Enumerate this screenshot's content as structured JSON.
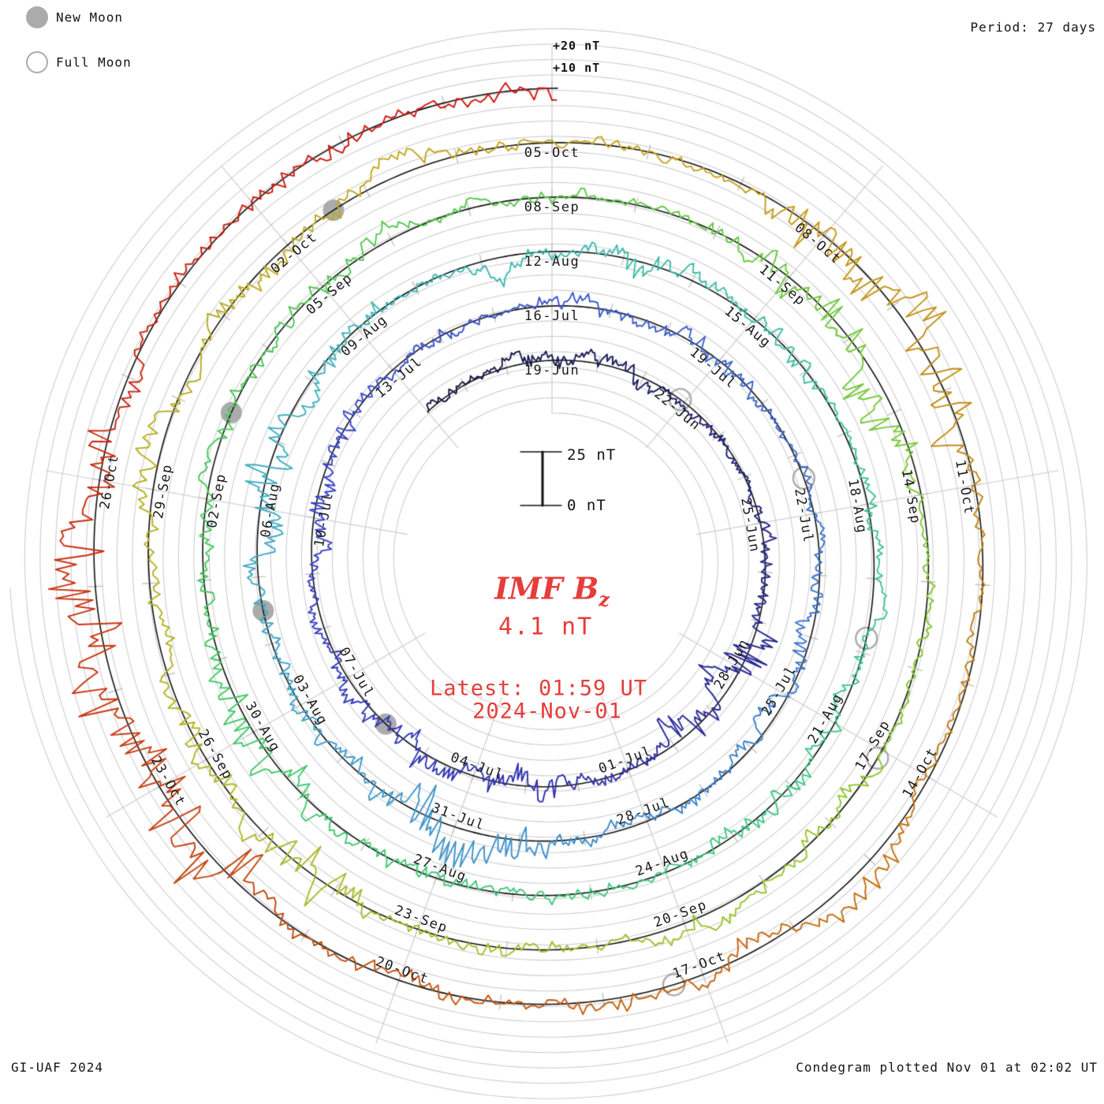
{
  "header": {
    "period_label": "Period: 27 days"
  },
  "legend": {
    "new_moon": "New Moon",
    "full_moon": "Full Moon"
  },
  "footer": {
    "left": "GI-UAF 2024",
    "right": "Condegram plotted Nov 01 at 02:02 UT"
  },
  "center": {
    "title_main": "IMF B",
    "title_sub": "z",
    "value": "4.1 nT",
    "latest_line1": "Latest: 01:59 UT",
    "latest_line2": "2024-Nov-01"
  },
  "grid_labels": {
    "plus20": "+20 nT",
    "plus10": "+10 nT"
  },
  "scale_bar": {
    "top_label": "25 nT",
    "bottom_label": "0 nT"
  },
  "chart_data": {
    "type": "line",
    "subtype": "condegram (polar time-spiral of IMF Bz, one revolution = 27 days, 5 revolutions ending 2024-Nov-01)",
    "title": "IMF Bz",
    "units": "nT",
    "period_days": 27,
    "revolutions": 5,
    "latest": {
      "value_nT": 4.1,
      "time": "01:59 UT",
      "date": "2024-Nov-01"
    },
    "scale": {
      "bar_span_nT": [
        0,
        25
      ],
      "grid_step_nT": 10,
      "outer_grid_labels": [
        "+10 nT",
        "+20 nT"
      ]
    },
    "legend_position": "top-left",
    "grid_on": true,
    "date_labels": [
      {
        "day": 3,
        "label": "19-Jun"
      },
      {
        "day": 6,
        "label": "22-Jun"
      },
      {
        "day": 9,
        "label": "25-Jun"
      },
      {
        "day": 12,
        "label": "28-Jun"
      },
      {
        "day": 15,
        "label": "01-Jul"
      },
      {
        "day": 18,
        "label": "04-Jul"
      },
      {
        "day": 21,
        "label": "07-Jul"
      },
      {
        "day": 24,
        "label": "10-Jul"
      },
      {
        "day": 27,
        "label": "13-Jul"
      },
      {
        "day": 30,
        "label": "16-Jul"
      },
      {
        "day": 33,
        "label": "19-Jul"
      },
      {
        "day": 36,
        "label": "22-Jul"
      },
      {
        "day": 39,
        "label": "25-Jul"
      },
      {
        "day": 42,
        "label": "28-Jul"
      },
      {
        "day": 45,
        "label": "31-Jul"
      },
      {
        "day": 48,
        "label": "03-Aug"
      },
      {
        "day": 51,
        "label": "06-Aug"
      },
      {
        "day": 54,
        "label": "09-Aug"
      },
      {
        "day": 57,
        "label": "12-Aug"
      },
      {
        "day": 60,
        "label": "15-Aug"
      },
      {
        "day": 63,
        "label": "18-Aug"
      },
      {
        "day": 66,
        "label": "21-Aug"
      },
      {
        "day": 69,
        "label": "24-Aug"
      },
      {
        "day": 72,
        "label": "27-Aug"
      },
      {
        "day": 75,
        "label": "30-Aug"
      },
      {
        "day": 78,
        "label": "02-Sep"
      },
      {
        "day": 81,
        "label": "05-Sep"
      },
      {
        "day": 84,
        "label": "08-Sep"
      },
      {
        "day": 87,
        "label": "11-Sep"
      },
      {
        "day": 90,
        "label": "14-Sep"
      },
      {
        "day": 93,
        "label": "17-Sep"
      },
      {
        "day": 96,
        "label": "20-Sep"
      },
      {
        "day": 99,
        "label": "23-Sep"
      },
      {
        "day": 102,
        "label": "26-Sep"
      },
      {
        "day": 105,
        "label": "29-Sep"
      },
      {
        "day": 108,
        "label": "02-Oct"
      },
      {
        "day": 111,
        "label": "05-Oct"
      },
      {
        "day": 114,
        "label": "08-Oct"
      },
      {
        "day": 117,
        "label": "11-Oct"
      },
      {
        "day": 120,
        "label": "14-Oct"
      },
      {
        "day": 123,
        "label": "17-Oct"
      },
      {
        "day": 126,
        "label": "20-Oct"
      },
      {
        "day": 129,
        "label": "23-Oct"
      },
      {
        "day": 132,
        "label": "26-Oct"
      }
    ],
    "moon_markers": {
      "new_moon_days": [
        19.9,
        49.5,
        79.1,
        108.6
      ],
      "full_moon_days": [
        5.9,
        35.4,
        64.8,
        93.1,
        123.3
      ]
    },
    "colors": {
      "accent_red_text": "#e63d3b",
      "grid_gray": "#cdcdcd",
      "moon_gray": "#ababab",
      "baseline_black": "#111111",
      "trace_gradient_stops": [
        {
          "day": 0,
          "hex": "#14143c"
        },
        {
          "day": 8,
          "hex": "#21217a"
        },
        {
          "day": 16,
          "hex": "#3030aa"
        },
        {
          "day": 24,
          "hex": "#3840c4"
        },
        {
          "day": 30,
          "hex": "#3b57c8"
        },
        {
          "day": 36,
          "hex": "#3d6ec8"
        },
        {
          "day": 42,
          "hex": "#3f86c8"
        },
        {
          "day": 48,
          "hex": "#40a2ca"
        },
        {
          "day": 54,
          "hex": "#41b6b8"
        },
        {
          "day": 60,
          "hex": "#3fbfa2"
        },
        {
          "day": 66,
          "hex": "#3fc78c"
        },
        {
          "day": 72,
          "hex": "#41c876"
        },
        {
          "day": 78,
          "hex": "#47c75c"
        },
        {
          "day": 84,
          "hex": "#5ac84a"
        },
        {
          "day": 90,
          "hex": "#7ec836"
        },
        {
          "day": 96,
          "hex": "#9dc22e"
        },
        {
          "day": 102,
          "hex": "#afb626"
        },
        {
          "day": 108,
          "hex": "#bfa920"
        },
        {
          "day": 112,
          "hex": "#c7a41e"
        },
        {
          "day": 115,
          "hex": "#c29318"
        },
        {
          "day": 118,
          "hex": "#c28114"
        },
        {
          "day": 121,
          "hex": "#c36e11"
        },
        {
          "day": 124,
          "hex": "#c35e0f"
        },
        {
          "day": 127,
          "hex": "#c04c0f"
        },
        {
          "day": 130,
          "hex": "#c63710"
        },
        {
          "day": 133,
          "hex": "#c92410"
        },
        {
          "day": 136,
          "hex": "#cf1710"
        },
        {
          "day": 139,
          "hex": "#d11210"
        }
      ]
    }
  }
}
